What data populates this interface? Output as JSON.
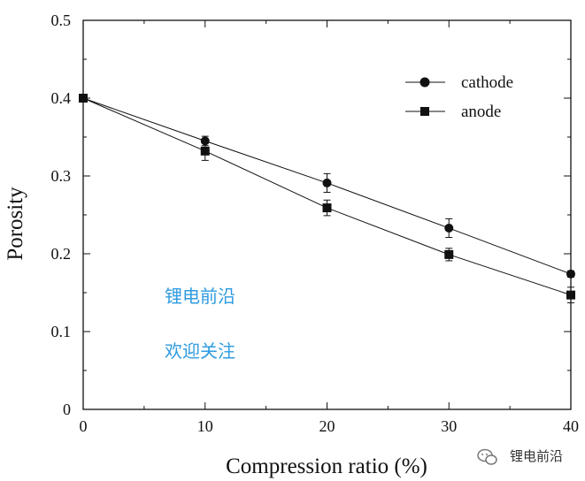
{
  "chart_data": {
    "type": "line",
    "xlabel": "Compression ratio (%)",
    "ylabel": "Porosity",
    "xlim": [
      0,
      40
    ],
    "ylim": [
      0,
      0.5
    ],
    "xticks": [
      0,
      10,
      20,
      30,
      40
    ],
    "yticks": [
      0,
      0.1,
      0.2,
      0.3,
      0.4,
      0.5
    ],
    "xtick_labels": [
      "0",
      "10",
      "20",
      "30",
      "40"
    ],
    "ytick_labels": [
      "0",
      "0.1",
      "0.2",
      "0.3",
      "0.4",
      "0.5"
    ],
    "legend_position": "top-right",
    "grid": false,
    "series": [
      {
        "name": "cathode",
        "marker": "circle",
        "x": [
          0,
          10,
          20,
          30,
          40
        ],
        "values": [
          0.4,
          0.345,
          0.291,
          0.233,
          0.174
        ],
        "error": [
          0.0,
          0.006,
          0.012,
          0.012,
          0.004
        ]
      },
      {
        "name": "anode",
        "marker": "square",
        "x": [
          0,
          10,
          20,
          30,
          40
        ],
        "values": [
          0.4,
          0.332,
          0.259,
          0.199,
          0.147
        ],
        "error": [
          0.0,
          0.012,
          0.01,
          0.008,
          0.01
        ]
      }
    ]
  },
  "watermark": {
    "line1": "锂电前沿",
    "line2": "欢迎关注",
    "badge": "锂电前沿",
    "color": "#2f9be0"
  }
}
